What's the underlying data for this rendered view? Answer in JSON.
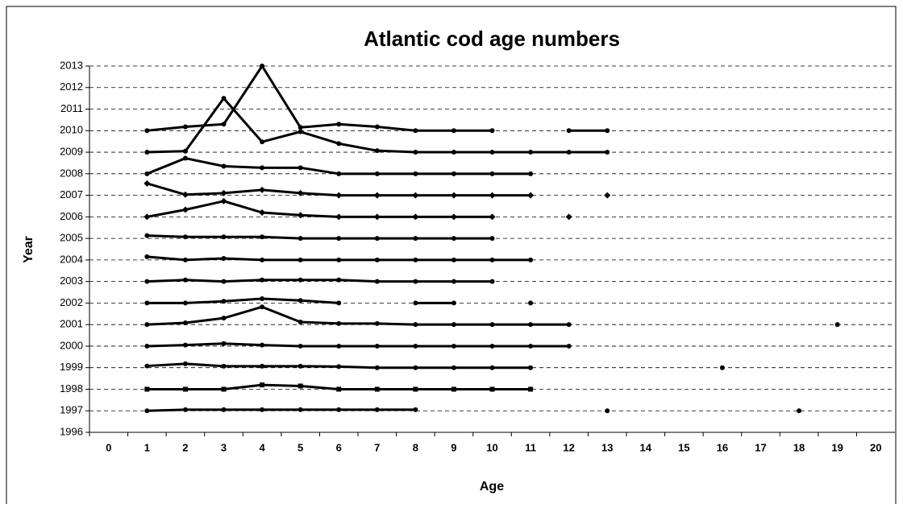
{
  "chart_data": {
    "type": "line",
    "title": "Atlantic cod age numbers",
    "x_label": "Age",
    "y_label": "Year",
    "categories": [
      "0",
      "1",
      "2",
      "3",
      "4",
      "5",
      "6",
      "7",
      "8",
      "9",
      "10",
      "11",
      "12",
      "13",
      "14",
      "15",
      "16",
      "17",
      "18",
      "19",
      "20"
    ],
    "ylim": [
      1996,
      2013
    ],
    "yticks": [
      1996,
      1997,
      1998,
      1999,
      2000,
      2001,
      2002,
      2003,
      2004,
      2005,
      2006,
      2007,
      2008,
      2009,
      2010,
      2011,
      2012,
      2013
    ],
    "grid": true,
    "series": [
      {
        "color": "#000000",
        "marker": "circle",
        "values": [
          null,
          1997,
          1997.05,
          1997.05,
          1997.05,
          1997.05,
          1997.05,
          1997.05,
          1997.05,
          null,
          null,
          null,
          null,
          1997,
          null,
          null,
          null,
          null,
          1997,
          null,
          null
        ]
      },
      {
        "color": "#000000",
        "marker": "square",
        "values": [
          null,
          1998,
          1998,
          1998,
          1998.2,
          1998.15,
          1998,
          1998,
          1998,
          1998,
          1998,
          1998,
          null,
          null,
          null,
          null,
          null,
          null,
          null,
          null,
          null
        ]
      },
      {
        "color": "#000000",
        "marker": "circle",
        "values": [
          null,
          1999.08,
          1999.18,
          1999.07,
          1999.07,
          1999.07,
          1999.05,
          1999,
          1999,
          1999,
          1999,
          1999,
          null,
          null,
          null,
          null,
          1999,
          null,
          null,
          null,
          null
        ]
      },
      {
        "color": "#000000",
        "marker": "circle",
        "values": [
          null,
          2000,
          2000.05,
          2000.12,
          2000.05,
          2000,
          2000,
          2000,
          2000,
          2000,
          2000,
          2000,
          2000,
          null,
          null,
          null,
          null,
          null,
          null,
          null,
          null
        ]
      },
      {
        "color": "#000000",
        "marker": "circle",
        "values": [
          null,
          2001,
          2001.08,
          2001.3,
          2001.82,
          2001.12,
          2001.05,
          2001.05,
          2001,
          2001,
          2001,
          2001,
          2001,
          null,
          null,
          null,
          null,
          null,
          null,
          2001,
          null
        ]
      },
      {
        "color": "#000000",
        "marker": "circle",
        "values": [
          null,
          2002,
          2002,
          2002.08,
          2002.2,
          2002.12,
          2002,
          null,
          2002,
          2002,
          null,
          2002,
          null,
          null,
          null,
          null,
          null,
          null,
          null,
          null,
          null
        ]
      },
      {
        "color": "#000000",
        "marker": "circle",
        "values": [
          null,
          2003,
          2003.07,
          2003,
          2003.07,
          2003.07,
          2003.07,
          2003,
          2003,
          2003,
          2003,
          null,
          null,
          null,
          null,
          null,
          null,
          null,
          null,
          null,
          null
        ]
      },
      {
        "color": "#000000",
        "marker": "circle",
        "values": [
          null,
          2004.15,
          2004,
          2004.07,
          2004,
          2004,
          2004,
          2004,
          2004,
          2004,
          2004,
          2004,
          null,
          null,
          null,
          null,
          null,
          null,
          null,
          null,
          null
        ]
      },
      {
        "color": "#000000",
        "marker": "circle",
        "values": [
          null,
          2005.13,
          2005.07,
          2005.07,
          2005.07,
          2005,
          2005,
          2005,
          2005,
          2005,
          2005,
          null,
          null,
          null,
          null,
          null,
          null,
          null,
          null,
          null,
          null
        ]
      },
      {
        "color": "#000000",
        "marker": "diamond",
        "values": [
          null,
          2006,
          2006.33,
          2006.73,
          2006.2,
          2006.08,
          2006,
          2006,
          2006,
          2006,
          2006,
          null,
          2006,
          null,
          null,
          null,
          null,
          null,
          null,
          null,
          null
        ]
      },
      {
        "color": "#000000",
        "marker": "diamond",
        "values": [
          null,
          2007.55,
          2007.03,
          2007.1,
          2007.25,
          2007.1,
          2007,
          2007,
          2007,
          2007,
          2007,
          2007,
          null,
          2007,
          null,
          null,
          null,
          null,
          null,
          null,
          null
        ]
      },
      {
        "color": "#000000",
        "marker": "circle",
        "values": [
          null,
          2008,
          2008.72,
          2008.35,
          2008.28,
          2008.28,
          2008,
          2008,
          2008,
          2008,
          2008,
          2008,
          null,
          null,
          null,
          null,
          null,
          null,
          null,
          null,
          null
        ]
      },
      {
        "color": "#000000",
        "marker": "circle",
        "values": [
          null,
          2009,
          2009.05,
          2011.5,
          2009.48,
          2009.95,
          2009.4,
          2009.07,
          2009,
          2009,
          2009,
          2009,
          2009,
          2009,
          null,
          null,
          null,
          null,
          null,
          null,
          null
        ]
      },
      {
        "color": "#000000",
        "marker": "circle",
        "values": [
          null,
          2010,
          2010.18,
          2010.3,
          2013,
          2010.15,
          2010.3,
          2010.18,
          2010,
          2010,
          2010,
          null,
          2010,
          2010,
          null,
          null,
          null,
          null,
          null,
          null,
          null
        ]
      }
    ]
  }
}
